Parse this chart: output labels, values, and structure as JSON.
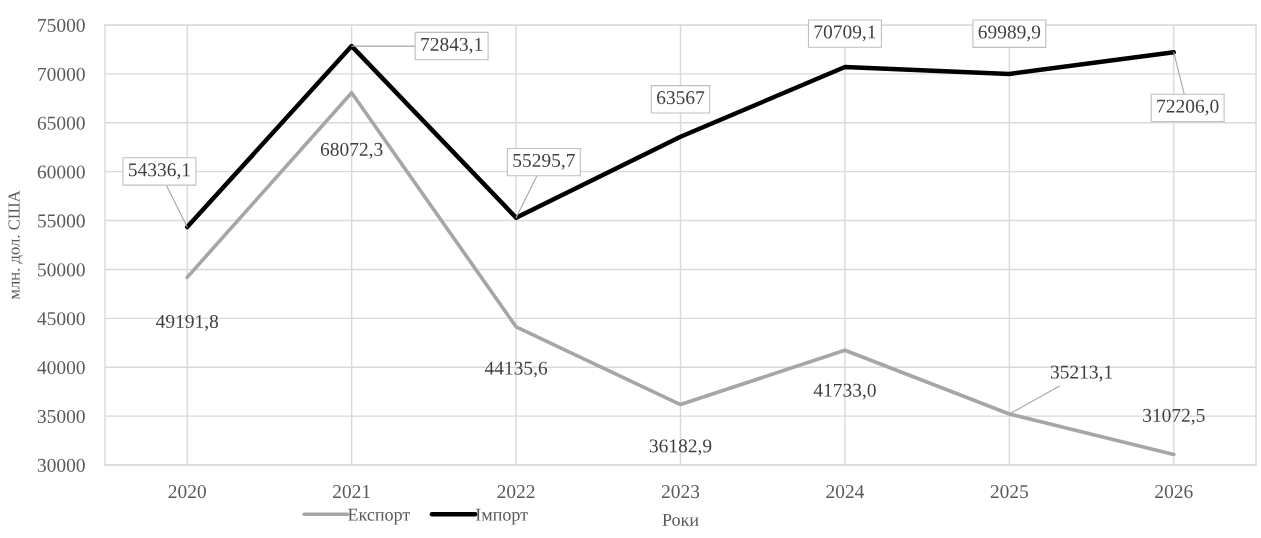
{
  "chart_data": {
    "type": "line",
    "categories": [
      "2020",
      "2021",
      "2022",
      "2023",
      "2024",
      "2025",
      "2026"
    ],
    "series": [
      {
        "name": "Експорт",
        "color": "#a6a6a6",
        "values": [
          49191.8,
          68072.3,
          44135.6,
          36182.9,
          41733.0,
          35213.1,
          31072.5
        ],
        "value_labels": [
          "49191,8",
          "68072,3",
          "44135,6",
          "36182,9",
          "41733,0",
          "35213,1",
          "31072,5"
        ]
      },
      {
        "name": "Імпорт",
        "color": "#000000",
        "values": [
          54336.1,
          72843.1,
          55295.7,
          63567,
          70709.1,
          69989.9,
          72206.0
        ],
        "value_labels": [
          "54336,1",
          "72843,1",
          "55295,7",
          "63567",
          "70709,1",
          "69989,9",
          "72206,0"
        ]
      }
    ],
    "xlabel": "Роки",
    "ylabel": "млн. дол. США",
    "ylim": [
      30000,
      75000
    ],
    "yticks": [
      30000,
      35000,
      40000,
      45000,
      50000,
      55000,
      60000,
      65000,
      70000,
      75000
    ],
    "grid": true,
    "legend": "bottom"
  }
}
